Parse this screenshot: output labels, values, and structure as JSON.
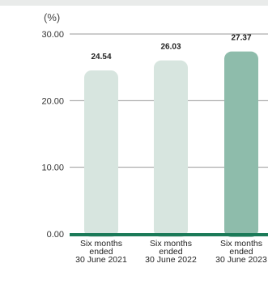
{
  "chart_data": {
    "type": "bar",
    "unit": "(%)",
    "categories": [
      [
        "Six months",
        "ended",
        "30 June 2021"
      ],
      [
        "Six months",
        "ended",
        "30 June 2022"
      ],
      [
        "Six months",
        "ended",
        "30 June 2023"
      ]
    ],
    "values": [
      24.54,
      26.03,
      27.37
    ],
    "value_labels": [
      "24.54",
      "26.03",
      "27.37"
    ],
    "ylim": [
      0,
      30
    ],
    "yticks": [
      {
        "value": 0,
        "label": "0.00"
      },
      {
        "value": 10,
        "label": "10.00"
      },
      {
        "value": 20,
        "label": "20.00"
      },
      {
        "value": 30,
        "label": "30.00"
      }
    ],
    "grid": true,
    "bar_colors": [
      "#d7e5df",
      "#d7e5df",
      "#8ebcab"
    ],
    "baseline_color": "#1b7a58",
    "grid_color": "#9a9a9a"
  }
}
